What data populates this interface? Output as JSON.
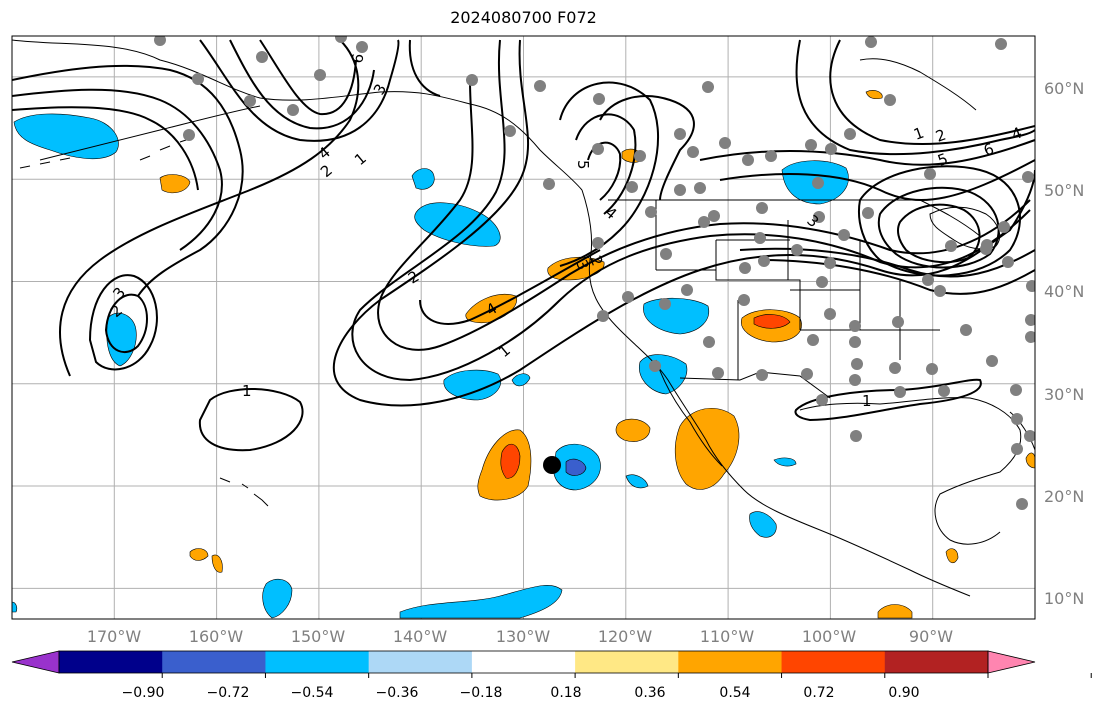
{
  "title": "2024080700 F072",
  "map": {
    "projection": "plate-carree",
    "lon_range": [
      -180,
      -80
    ],
    "lat_range": [
      7,
      64
    ],
    "grid": true
  },
  "lon_ticks": [
    "170°W",
    "160°W",
    "150°W",
    "140°W",
    "130°W",
    "120°W",
    "110°W",
    "100°W",
    "90°W"
  ],
  "lat_ticks": [
    "60°N",
    "50°N",
    "40°N",
    "30°N",
    "20°N",
    "10°N"
  ],
  "colorbar": {
    "ticks": [
      "−0.90",
      "−0.72",
      "−0.54",
      "−0.36",
      "−0.18",
      "0.18",
      "0.36",
      "0.54",
      "0.72",
      "0.90"
    ],
    "colors": [
      "#9932cc",
      "#00008b",
      "#3a5fcd",
      "#00bfff",
      "#add8f6",
      "#ffffff",
      "#ffe885",
      "#ffa500",
      "#ff4500",
      "#b22222",
      "#ff85b0"
    ],
    "extend": "both"
  },
  "contour_labels": [
    "6",
    "3",
    "4",
    "2",
    "1",
    "3",
    "2",
    "1",
    "5",
    "4",
    "3",
    "2",
    "2",
    "1",
    "4",
    "1",
    "1",
    "2",
    "3",
    "5",
    "6",
    "4",
    "1",
    "1"
  ],
  "storm_marker": {
    "lon": -126,
    "lat": 23
  }
}
